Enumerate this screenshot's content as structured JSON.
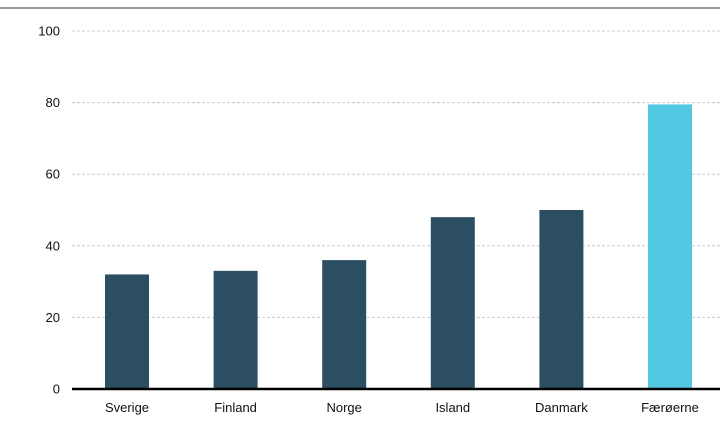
{
  "chart_data": {
    "type": "bar",
    "categories": [
      "Sverige",
      "Finland",
      "Norge",
      "Island",
      "Danmark",
      "Færøerne"
    ],
    "values": [
      32,
      33,
      36,
      48,
      50,
      79.5
    ],
    "ylim": [
      0,
      100
    ],
    "yticks": [
      0,
      20,
      40,
      60,
      80,
      100
    ],
    "grid": true,
    "legend": "none",
    "colors": {
      "bar": "#2c4e63",
      "highlight": "#52c8e2",
      "grid": "#cccccc",
      "axis": "#000000",
      "top_border": "#333333"
    },
    "highlight_index": 5
  }
}
